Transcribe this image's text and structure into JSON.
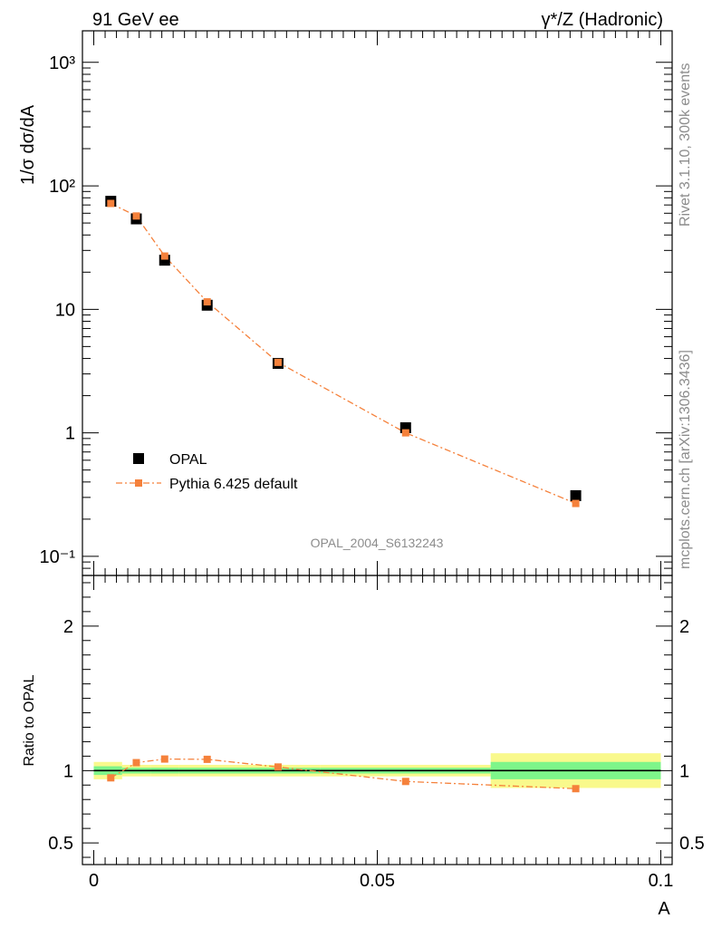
{
  "header": {
    "left": "91 GeV ee",
    "right": "γ*/Z (Hadronic)"
  },
  "side_text": {
    "rivet": "Rivet 3.1.10,  300k events",
    "mcplots": "mcplots.cern.ch [arXiv:1306.3436]"
  },
  "analysis_label": "OPAL_2004_S6132243",
  "colors": {
    "data": "#000000",
    "mc": "#f5813b",
    "band_inner": "#7ef58a",
    "band_outer": "#f9f98c"
  },
  "chart_data": [
    {
      "type": "scatter",
      "panel": "main",
      "ylabel": "1/σ dσ/dA",
      "yscale": "log",
      "ylim": [
        0.07,
        1800
      ],
      "xlim": [
        -0.002,
        0.102
      ],
      "ytick_labels": [
        "10⁻¹",
        "1",
        "10",
        "10²",
        "10³"
      ],
      "legend_position": "lower-left",
      "series": [
        {
          "name": "OPAL",
          "style": "markers",
          "x": [
            0.003,
            0.0075,
            0.0125,
            0.02,
            0.0325,
            0.055,
            0.085
          ],
          "values": [
            75,
            54,
            25,
            10.8,
            3.65,
            1.1,
            0.31
          ]
        },
        {
          "name": "Pythia 6.425 default",
          "style": "dash-dot line with markers",
          "x": [
            0.003,
            0.0075,
            0.0125,
            0.02,
            0.0325,
            0.055,
            0.085
          ],
          "values": [
            72,
            57,
            27,
            11.5,
            3.72,
            1.0,
            0.268
          ]
        }
      ]
    },
    {
      "type": "line",
      "panel": "ratio",
      "xlabel": "A",
      "ylabel": "Ratio to OPAL",
      "ylim": [
        0.35,
        2.35
      ],
      "xlim": [
        -0.002,
        0.102
      ],
      "xtick_labels": [
        "0",
        "0.05",
        "0.1"
      ],
      "ytick_labels": [
        "0.5",
        "1",
        "2"
      ],
      "bands": [
        {
          "x0": 0.0,
          "x1": 0.005,
          "inner": 0.03,
          "outer": 0.06
        },
        {
          "x0": 0.005,
          "x1": 0.01,
          "inner": 0.02,
          "outer": 0.04
        },
        {
          "x0": 0.01,
          "x1": 0.015,
          "inner": 0.02,
          "outer": 0.04
        },
        {
          "x0": 0.015,
          "x1": 0.025,
          "inner": 0.02,
          "outer": 0.04
        },
        {
          "x0": 0.025,
          "x1": 0.04,
          "inner": 0.02,
          "outer": 0.04
        },
        {
          "x0": 0.04,
          "x1": 0.07,
          "inner": 0.02,
          "outer": 0.04
        },
        {
          "x0": 0.07,
          "x1": 0.1,
          "inner": 0.06,
          "outer": 0.12
        }
      ],
      "series": [
        {
          "name": "Pythia 6.425 default",
          "x": [
            0.003,
            0.0075,
            0.0125,
            0.02,
            0.0325,
            0.055,
            0.085
          ],
          "values": [
            0.95,
            1.055,
            1.08,
            1.078,
            1.025,
            0.925,
            0.875
          ]
        }
      ]
    }
  ]
}
